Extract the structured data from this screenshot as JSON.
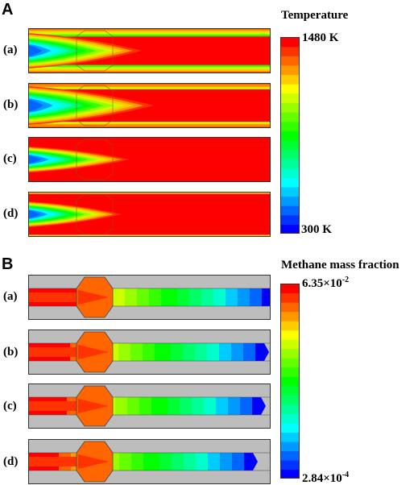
{
  "panel_a": {
    "letter": "A",
    "colorbar_title": "Temperature",
    "colorbar_max": "1480 K",
    "colorbar_min": "300 K",
    "rows": [
      "(a)",
      "(b)",
      "(c)",
      "(d)"
    ]
  },
  "panel_b": {
    "letter": "B",
    "colorbar_title": "Methane mass fraction",
    "colorbar_max_base": "6.35×10",
    "colorbar_max_exp": "-2",
    "colorbar_min_base": "2.84×10",
    "colorbar_min_exp": "-4",
    "rows": [
      "(a)",
      "(b)",
      "(c)",
      "(d)"
    ]
  },
  "colors": {
    "scale": [
      "#0000ff",
      "#0033ff",
      "#0066ff",
      "#0099ff",
      "#00ccff",
      "#00ffff",
      "#00ffcc",
      "#00ff99",
      "#00ff66",
      "#00ff33",
      "#00ff00",
      "#33ff00",
      "#66ff00",
      "#99ff00",
      "#ccff00",
      "#ffff00",
      "#ffcc00",
      "#ff9900",
      "#ff6600",
      "#ff3300",
      "#ff0000"
    ],
    "wall_gray": "#bdbdbd"
  }
}
